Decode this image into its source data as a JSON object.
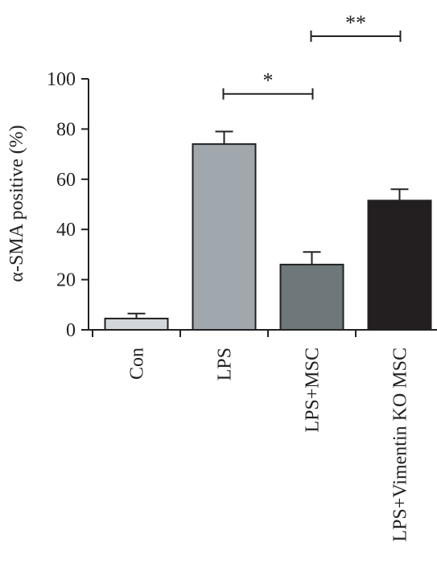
{
  "chart_data": {
    "type": "bar",
    "title": "",
    "xlabel": "",
    "ylabel": "α-SMA positive (%)",
    "ylim": [
      0,
      100
    ],
    "yticks": [
      0,
      20,
      40,
      60,
      80,
      100
    ],
    "grid": false,
    "categories": [
      "Con",
      "LPS",
      "LPS+MSC",
      "LPS+Vimentin KO MSC"
    ],
    "values": [
      4.5,
      74,
      26,
      51.5
    ],
    "errors": [
      2,
      5,
      5,
      4.5
    ],
    "colors": [
      "#d3d6db",
      "#a0a7ad",
      "#6e777a",
      "#231f20"
    ],
    "significance": [
      {
        "from": 1,
        "to": 2,
        "label": "*",
        "y": 94
      },
      {
        "from": 2,
        "to": 3,
        "label": "**",
        "y": 117
      }
    ]
  }
}
